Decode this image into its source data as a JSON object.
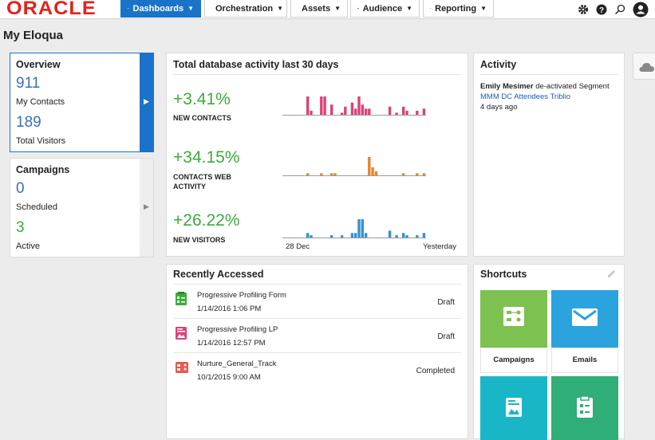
{
  "brand": {
    "logo": "ORACLE",
    "color": "#e2231a"
  },
  "nav": {
    "tabs": [
      {
        "label": "Dashboards",
        "icon": "home-icon"
      },
      {
        "label": "Orchestration",
        "icon": "orchestration-icon"
      },
      {
        "label": "Assets",
        "icon": "assets-icon"
      },
      {
        "label": "Audience",
        "icon": "audience-icon"
      },
      {
        "label": "Reporting",
        "icon": "reporting-icon"
      }
    ]
  },
  "page": {
    "title": "My Eloqua"
  },
  "overview": {
    "title": "Overview",
    "contacts_value": "911",
    "contacts_label": "My Contacts",
    "visitors_value": "189",
    "visitors_label": "Total Visitors"
  },
  "campaigns": {
    "title": "Campaigns",
    "scheduled_value": "0",
    "scheduled_label": "Scheduled",
    "active_value": "3",
    "active_label": "Active"
  },
  "db_activity": {
    "title": "Total database activity last 30 days",
    "metrics": [
      {
        "value": "+3.41%",
        "label": "NEW CONTACTS",
        "color": "#d9437a",
        "bars": [
          0,
          0,
          0,
          0,
          0,
          0,
          0,
          9,
          2,
          0,
          0,
          9,
          9,
          0,
          5,
          0,
          0,
          1,
          4,
          0,
          6,
          3,
          9,
          5,
          3,
          3,
          0,
          0,
          0,
          0,
          0,
          4,
          0,
          1,
          0,
          4,
          2,
          0,
          0,
          2,
          0,
          3
        ]
      },
      {
        "value": "+34.15%",
        "label": "CONTACTS WEB ACTIVITY",
        "color": "#e8822f",
        "bars": [
          0,
          0,
          0,
          0,
          0,
          0,
          0,
          1,
          0,
          0,
          0,
          1,
          0,
          0,
          1,
          1,
          0,
          0,
          0,
          0,
          0,
          0,
          0,
          0,
          0,
          9,
          4,
          2,
          0,
          0,
          0,
          0,
          0,
          0,
          0,
          1,
          0,
          0,
          0,
          1,
          0,
          1
        ]
      },
      {
        "value": "+26.22%",
        "label": "NEW VISITORS",
        "color": "#3592d0",
        "bars": [
          0,
          0,
          0,
          0,
          0,
          0,
          0,
          2,
          1,
          0,
          0,
          0,
          0,
          0,
          1,
          0,
          0,
          1,
          0,
          0,
          2,
          2,
          8,
          8,
          2,
          0,
          0,
          0,
          0,
          0,
          0,
          3,
          0,
          1,
          0,
          2,
          1,
          0,
          0,
          1,
          0,
          2
        ]
      }
    ],
    "axis_start": "28 Dec",
    "axis_end": "Yesterday"
  },
  "activity": {
    "title": "Activity",
    "user": "Emily Mesimer",
    "action": "de-activated Segment",
    "link": "MMM DC Attendees Triblio",
    "time": "4 days ago"
  },
  "recent": {
    "title": "Recently Accessed",
    "items": [
      {
        "name": "Progressive Profiling Form",
        "date": "1/14/2016 1:06 PM",
        "status": "Draft",
        "color": "#3cab3c"
      },
      {
        "name": "Progressive Profiling LP",
        "date": "1/14/2016 12:57 PM",
        "status": "Draft",
        "color": "#d9437a"
      },
      {
        "name": "Nurture_General_Track",
        "date": "10/1/2015 9:00 AM",
        "status": "Completed",
        "color": "#e85a4f"
      }
    ]
  },
  "shortcuts": {
    "title": "Shortcuts",
    "tiles": [
      {
        "label": "Campaigns",
        "color": "#7dc151"
      },
      {
        "label": "Emails",
        "color": "#2ba3df"
      },
      {
        "label": "",
        "color": "#19b6c8"
      },
      {
        "label": "",
        "color": "#2fae77"
      }
    ]
  }
}
